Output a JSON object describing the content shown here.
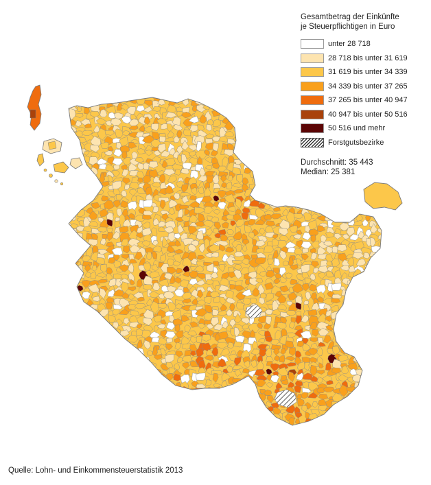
{
  "legend": {
    "title_line1": "Gesamtbetrag der Einkünfte",
    "title_line2": "je Steuerpflichtigen in Euro",
    "classes": [
      {
        "label": "unter 28 718",
        "color": "#ffffff"
      },
      {
        "label": "28 718 bis unter 31 619",
        "color": "#fde4b0"
      },
      {
        "label": "31 619 bis unter 34 339",
        "color": "#fcc74a"
      },
      {
        "label": "34 339 bis unter 37 265",
        "color": "#f9a01c"
      },
      {
        "label": "37 265 bis unter 40 947",
        "color": "#ef6c0e"
      },
      {
        "label": "40 947 bis unter 50 516",
        "color": "#a9420b"
      },
      {
        "label": "50 516 und mehr",
        "color": "#5c0505"
      },
      {
        "label": "Forstgutsbezirke",
        "color": "hatch"
      }
    ],
    "stats": {
      "mean": "Durchschnitt: 35 443",
      "median": "Median: 25 381"
    }
  },
  "source": "Quelle: Lohn- und Einkommensteuerstatistik 2013",
  "colors": {
    "border": "#8a8a8a",
    "background": "#ffffff"
  }
}
